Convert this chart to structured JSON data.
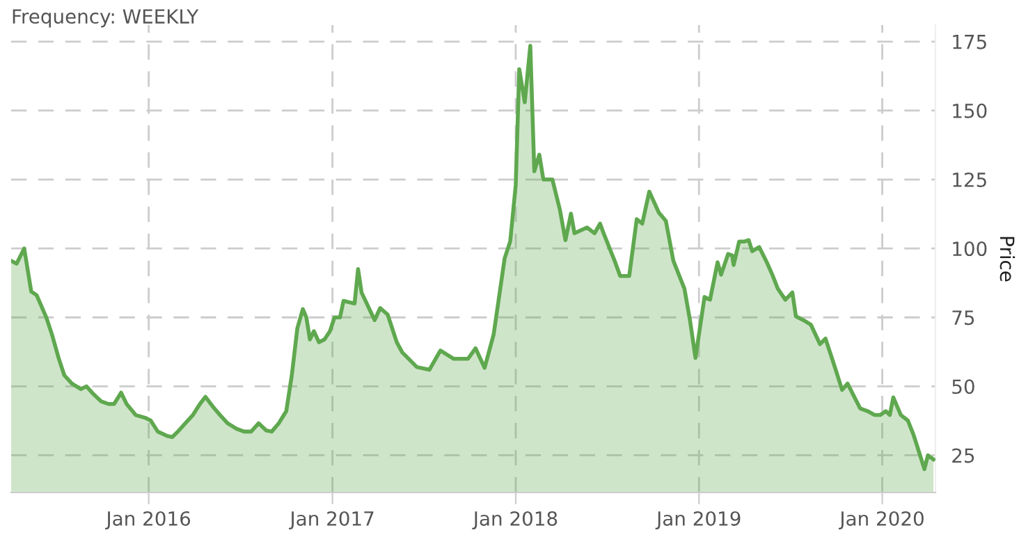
{
  "chart_data": {
    "type": "area",
    "title": "Frequency: WEEKLY",
    "ylabel": "Price",
    "x": [
      "2015-04-02",
      "2015-04-13",
      "2015-04-28",
      "2015-05-12",
      "2015-05-23",
      "2015-06-11",
      "2015-06-22",
      "2015-07-06",
      "2015-07-17",
      "2015-08-01",
      "2015-08-19",
      "2015-08-30",
      "2015-09-14",
      "2015-09-28",
      "2015-10-13",
      "2015-10-24",
      "2015-11-07",
      "2015-11-18",
      "2015-12-06",
      "2015-12-25",
      "2016-01-05",
      "2016-01-19",
      "2016-02-07",
      "2016-02-17",
      "2016-02-28",
      "2016-03-14",
      "2016-03-29",
      "2016-04-12",
      "2016-04-23",
      "2016-05-08",
      "2016-05-22",
      "2016-06-06",
      "2016-06-24",
      "2016-07-09",
      "2016-07-23",
      "2016-08-07",
      "2016-08-22",
      "2016-09-02",
      "2016-09-16",
      "2016-10-01",
      "2016-10-12",
      "2016-10-23",
      "2016-11-03",
      "2016-11-10",
      "2016-11-17",
      "2016-11-25",
      "2016-12-05",
      "2016-12-16",
      "2016-12-27",
      "2017-01-05",
      "2017-01-16",
      "2017-01-23",
      "2017-02-14",
      "2017-02-21",
      "2017-02-28",
      "2017-03-26",
      "2017-04-06",
      "2017-04-21",
      "2017-05-09",
      "2017-05-20",
      "2017-06-18",
      "2017-07-13",
      "2017-08-04",
      "2017-08-30",
      "2017-09-28",
      "2017-10-13",
      "2017-10-31",
      "2017-11-18",
      "2017-12-10",
      "2017-12-21",
      "2018-01-01",
      "2018-01-08",
      "2018-01-19",
      "2018-01-30",
      "2018-02-07",
      "2018-02-17",
      "2018-02-25",
      "2018-03-15",
      "2018-03-30",
      "2018-04-10",
      "2018-04-21",
      "2018-04-28",
      "2018-05-23",
      "2018-06-07",
      "2018-06-18",
      "2018-06-25",
      "2018-07-17",
      "2018-07-28",
      "2018-08-15",
      "2018-08-30",
      "2018-09-10",
      "2018-09-24",
      "2018-10-13",
      "2018-10-27",
      "2018-11-11",
      "2018-12-03",
      "2018-12-14",
      "2018-12-25",
      "2019-01-12",
      "2019-01-23",
      "2019-02-07",
      "2019-02-14",
      "2019-02-28",
      "2019-03-08",
      "2019-03-11",
      "2019-03-22",
      "2019-04-02",
      "2019-04-10",
      "2019-04-17",
      "2019-05-01",
      "2019-05-16",
      "2019-05-27",
      "2019-06-07",
      "2019-06-22",
      "2019-07-06",
      "2019-07-13",
      "2019-07-28",
      "2019-08-12",
      "2019-08-30",
      "2019-09-10",
      "2019-09-28",
      "2019-10-13",
      "2019-10-24",
      "2019-11-04",
      "2019-11-18",
      "2019-12-03",
      "2019-12-17",
      "2019-12-28",
      "2020-01-08",
      "2020-01-16",
      "2020-01-23",
      "2020-02-07",
      "2020-02-21",
      "2020-03-03",
      "2020-03-10",
      "2020-03-25",
      "2020-04-01",
      "2020-04-12"
    ],
    "series": [
      {
        "color": "#5fa84f",
        "values": [
          95.5,
          94.5,
          100,
          84.4,
          83,
          75,
          69,
          60,
          54,
          51,
          49,
          50,
          47,
          44.6,
          43.6,
          43.6,
          47.7,
          43.6,
          39.6,
          38.6,
          37.6,
          33.6,
          32,
          31.6,
          33.6,
          36.6,
          39.6,
          43.6,
          46.2,
          42.6,
          39.6,
          36.6,
          34.6,
          33.6,
          33.6,
          36.6,
          34,
          33.6,
          36.6,
          41,
          54,
          71,
          78,
          75,
          67,
          70,
          66,
          67,
          70,
          75,
          75,
          81,
          80,
          92.5,
          84,
          74,
          78.4,
          76,
          66,
          62.3,
          57,
          56,
          63,
          60,
          60,
          63.8,
          56.7,
          68.8,
          96.5,
          102.5,
          123,
          165,
          153,
          173.5,
          128,
          134,
          125,
          125,
          114,
          103,
          112.6,
          105.5,
          107.6,
          105.5,
          109,
          105.5,
          95.5,
          90,
          90,
          110.6,
          109,
          120.6,
          113,
          110,
          95.5,
          85.4,
          74,
          60.3,
          82.4,
          81.4,
          95,
          90.5,
          98,
          97.5,
          94,
          102.5,
          102.5,
          103,
          99,
          100.5,
          95,
          90.5,
          85.4,
          81.4,
          84,
          75.4,
          74,
          72.3,
          65.3,
          67.3,
          57.3,
          48.7,
          51,
          47,
          42,
          41,
          39.6,
          39.6,
          41,
          39.6,
          46,
          39.6,
          37.6,
          32.6,
          28.6,
          20,
          25,
          23.5
        ]
      }
    ],
    "xlim": [
      "2015-04-02",
      "2020-04-16"
    ],
    "xticks": [
      {
        "value": "2016-01-01",
        "label": "Jan 2016"
      },
      {
        "value": "2017-01-01",
        "label": "Jan 2017"
      },
      {
        "value": "2018-01-01",
        "label": "Jan 2018"
      },
      {
        "value": "2019-01-01",
        "label": "Jan 2019"
      },
      {
        "value": "2020-01-01",
        "label": "Jan 2020"
      }
    ],
    "ylim": [
      11.5,
      181
    ],
    "yticks": [
      25,
      50,
      75,
      100,
      125,
      150,
      175
    ],
    "grid": true,
    "line_style": "solid",
    "marker": "none"
  }
}
